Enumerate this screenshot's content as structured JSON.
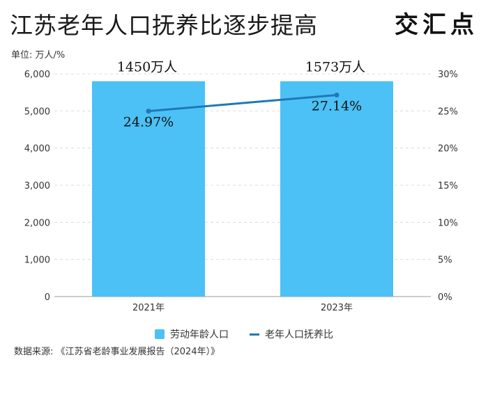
{
  "header": {
    "title": "江苏老年人口抚养比逐步提高",
    "logo_text": "交汇点"
  },
  "unit_label": "单位: 万人/%",
  "source_text": "数据来源: 《江苏省老龄事业发展报告（2024年）》",
  "chart_data": {
    "type": "bar",
    "categories": [
      "2021年",
      "2023年"
    ],
    "series": [
      {
        "name": "劳动年龄人口",
        "chart": "bar",
        "axis": "left",
        "values": [
          5800,
          5800
        ],
        "color": "#4cc1f5"
      },
      {
        "name": "老年人口抚养比",
        "chart": "line",
        "axis": "right",
        "values": [
          24.97,
          27.14
        ],
        "color": "#1f78b8"
      }
    ],
    "bar_annotations": [
      "1450万人",
      "1573万人"
    ],
    "line_labels": [
      "24.97%",
      "27.14%"
    ],
    "y_left": {
      "min": 0,
      "max": 6000,
      "ticks": [
        "0",
        "1,000",
        "2,000",
        "3,000",
        "4,000",
        "5,000",
        "6,000"
      ]
    },
    "y_right": {
      "min": 0,
      "max": 30,
      "ticks": [
        "0%",
        "5%",
        "10%",
        "15%",
        "20%",
        "25%",
        "30%"
      ]
    },
    "grid": true,
    "legend": "bottom-center"
  }
}
